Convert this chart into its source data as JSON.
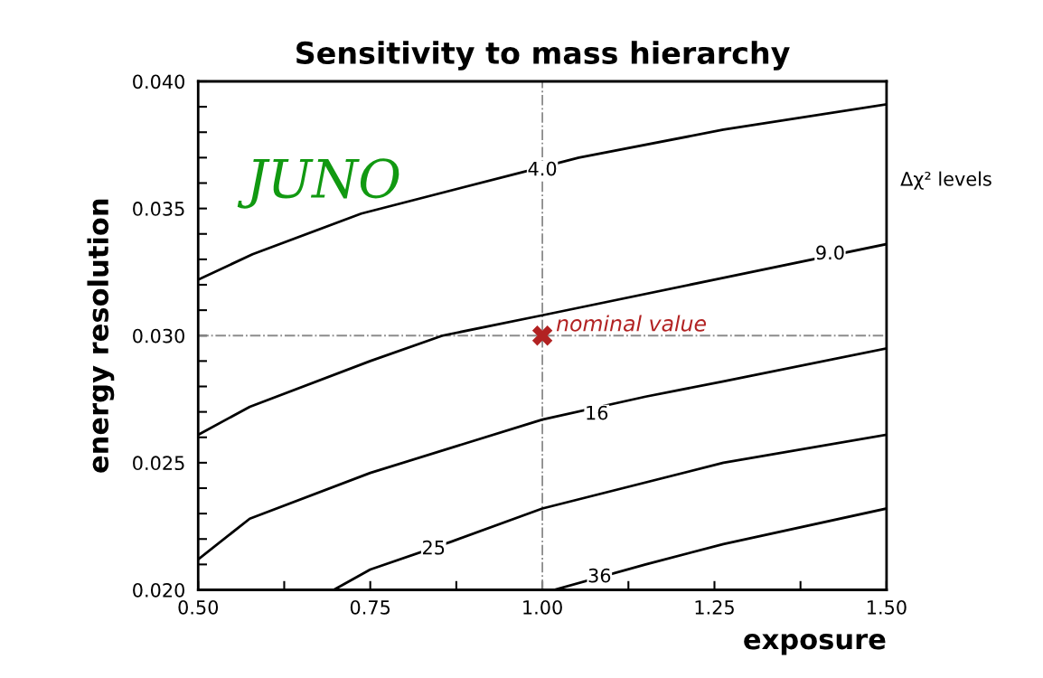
{
  "chart_data": {
    "type": "line",
    "title": "Sensitivity to mass hierarchy",
    "xlabel": "exposure",
    "ylabel": "energy resolution",
    "xlim": [
      0.5,
      1.5
    ],
    "ylim": [
      0.02,
      0.04
    ],
    "xticks": [
      {
        "value": 0.5,
        "label": "0.50"
      },
      {
        "value": 0.625,
        "label": null
      },
      {
        "value": 0.75,
        "label": "0.75"
      },
      {
        "value": 0.875,
        "label": null
      },
      {
        "value": 1.0,
        "label": "1.00"
      },
      {
        "value": 1.125,
        "label": null
      },
      {
        "value": 1.25,
        "label": "1.25"
      },
      {
        "value": 1.375,
        "label": null
      },
      {
        "value": 1.5,
        "label": "1.50"
      }
    ],
    "yticks": [
      {
        "value": 0.02,
        "label": "0.020"
      },
      {
        "value": 0.021,
        "label": null
      },
      {
        "value": 0.022,
        "label": null
      },
      {
        "value": 0.023,
        "label": null
      },
      {
        "value": 0.024,
        "label": null
      },
      {
        "value": 0.025,
        "label": "0.025"
      },
      {
        "value": 0.026,
        "label": null
      },
      {
        "value": 0.027,
        "label": null
      },
      {
        "value": 0.028,
        "label": null
      },
      {
        "value": 0.029,
        "label": null
      },
      {
        "value": 0.03,
        "label": "0.030"
      },
      {
        "value": 0.031,
        "label": null
      },
      {
        "value": 0.032,
        "label": null
      },
      {
        "value": 0.033,
        "label": null
      },
      {
        "value": 0.034,
        "label": null
      },
      {
        "value": 0.035,
        "label": "0.035"
      },
      {
        "value": 0.036,
        "label": null
      },
      {
        "value": 0.037,
        "label": null
      },
      {
        "value": 0.038,
        "label": null
      },
      {
        "value": 0.039,
        "label": null
      },
      {
        "value": 0.04,
        "label": "0.040"
      }
    ],
    "grid": false,
    "legend": false,
    "marker": "none",
    "line_style": "solid",
    "series": [
      {
        "color": "#000000",
        "x": [
          0.5,
          0.579,
          0.737,
          0.974,
          1.053,
          1.263,
          1.5
        ],
        "values": [
          0.0322,
          0.0332,
          0.0348,
          0.03645,
          0.037,
          0.0381,
          0.0391
        ]
      },
      {
        "color": "#000000",
        "x": [
          0.5,
          0.575,
          0.75,
          0.855,
          1.0,
          1.25,
          1.5
        ],
        "values": [
          0.0261,
          0.0272,
          0.029,
          0.03,
          0.0308,
          0.0322,
          0.0336
        ]
      },
      {
        "color": "#000000",
        "x": [
          0.5,
          0.575,
          0.75,
          1.0,
          1.15,
          1.263,
          1.5
        ],
        "values": [
          0.0212,
          0.0228,
          0.0246,
          0.0267,
          0.0276,
          0.0282,
          0.0295
        ]
      },
      {
        "color": "#000000",
        "x": [
          0.697,
          0.75,
          0.868,
          1.0,
          1.263,
          1.5
        ],
        "values": [
          0.02,
          0.0208,
          0.0219,
          0.0232,
          0.025,
          0.0261
        ]
      },
      {
        "color": "#000000",
        "x": [
          1.017,
          1.15,
          1.263,
          1.5
        ],
        "values": [
          0.02,
          0.021,
          0.0218,
          0.0232
        ]
      },
      {
        "type": "scatter",
        "name": "nominal value",
        "color": "#b22222",
        "marker": "cross",
        "x": [
          1.0
        ],
        "values": [
          0.03
        ]
      }
    ],
    "ref_lines": [
      {
        "axis": "x",
        "value": 1.0,
        "label": null,
        "color": "#8c8c8c",
        "line_style": "dashdot"
      },
      {
        "axis": "y",
        "value": 0.03,
        "label": null,
        "color": "#8c8c8c",
        "line_style": "dashdot"
      }
    ],
    "annotations": [
      {
        "text": "4.0",
        "x": 1.0,
        "y": 0.0365
      },
      {
        "text": "9.0",
        "x": 1.418,
        "y": 0.0332
      },
      {
        "text": "16",
        "x": 1.079,
        "y": 0.0269
      },
      {
        "text": "25",
        "x": 0.842,
        "y": 0.0216
      },
      {
        "text": "36",
        "x": 1.083,
        "y": 0.0205
      },
      "JUNO",
      "Δχ² levels"
    ]
  }
}
